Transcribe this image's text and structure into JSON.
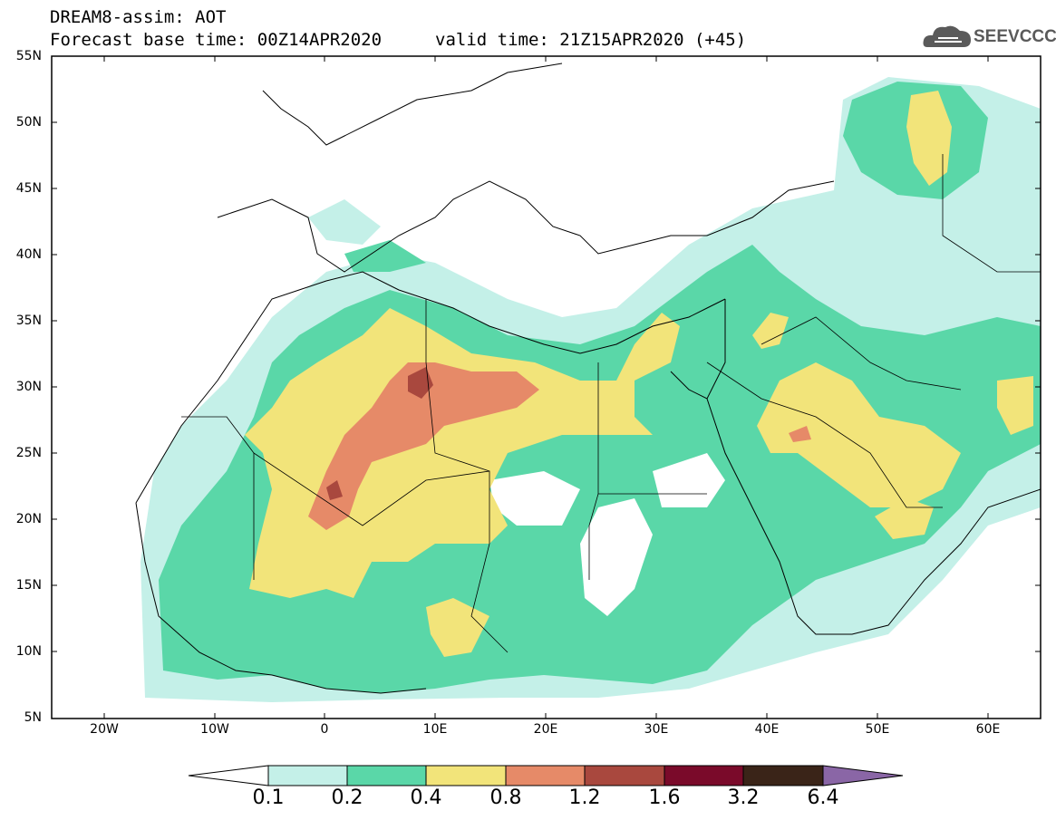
{
  "title_line1": "DREAM8-assim: AOT",
  "title_line2": "Forecast base time: 00Z14APR2020",
  "title_valid": "valid time: 21Z15APR2020 (+45)",
  "logo_text": "SEEVCCC",
  "logo_icon": "cloud-icon",
  "lat_labels": [
    "55N",
    "50N",
    "45N",
    "40N",
    "35N",
    "30N",
    "25N",
    "20N",
    "15N",
    "10N",
    "5N"
  ],
  "lon_labels": [
    "20W",
    "10W",
    "0",
    "10E",
    "20E",
    "30E",
    "40E",
    "50E",
    "60E"
  ],
  "colorbar": {
    "labels": [
      "0.1",
      "0.2",
      "0.4",
      "0.8",
      "1.2",
      "1.6",
      "3.2",
      "6.4"
    ],
    "colors": [
      "#c4f0e8",
      "#5ad7a8",
      "#f2e47a",
      "#e68a68",
      "#a9483e",
      "#7a0a2a",
      "#3a2418",
      "#8a66a6"
    ]
  },
  "colors": {
    "light": "#c4f0e8",
    "green": "#5ad7a8",
    "yellow": "#f2e47a",
    "orange": "#e68a68",
    "brown": "#a9483e"
  }
}
